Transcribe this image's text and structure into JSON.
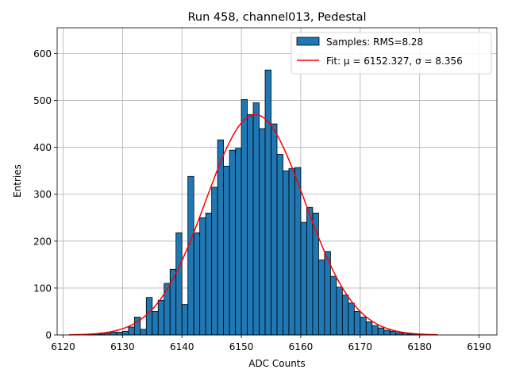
{
  "chart_data": {
    "type": "bar",
    "title": "Run 458, channel013, Pedestal",
    "xlabel": "ADC Counts",
    "ylabel": "Entries",
    "xlim": [
      6119,
      6193
    ],
    "ylim": [
      0,
      655
    ],
    "xticks": [
      6120,
      6130,
      6140,
      6150,
      6160,
      6170,
      6180,
      6190
    ],
    "yticks": [
      0,
      100,
      200,
      300,
      400,
      500,
      600
    ],
    "grid": true,
    "legend_position": "top-right",
    "colors": {
      "bar": "#1f77b4",
      "fit": "#ff0000"
    },
    "series": [
      {
        "name": "Samples: RMS=8.28",
        "kind": "histogram",
        "bin_edges": [
          6121,
          6122,
          6123,
          6124,
          6125,
          6126,
          6127,
          6128,
          6129,
          6130,
          6131,
          6132,
          6133,
          6134,
          6135,
          6136,
          6137,
          6138,
          6139,
          6140,
          6141,
          6142,
          6143,
          6144,
          6145,
          6146,
          6147,
          6148,
          6149,
          6150,
          6151,
          6152,
          6153,
          6154,
          6155,
          6156,
          6157,
          6158,
          6159,
          6160,
          6161,
          6162,
          6163,
          6164,
          6165,
          6166,
          6167,
          6168,
          6169,
          6170,
          6171,
          6172,
          6173,
          6174,
          6175,
          6176,
          6177,
          6178,
          6179,
          6180,
          6181,
          6182,
          6183
        ],
        "values": [
          0,
          0,
          0,
          1,
          2,
          2,
          4,
          6,
          6,
          8,
          17,
          38,
          12,
          80,
          50,
          74,
          110,
          140,
          218,
          65,
          338,
          218,
          250,
          260,
          315,
          416,
          360,
          394,
          398,
          502,
          470,
          495,
          440,
          565,
          450,
          385,
          350,
          355,
          357,
          240,
          272,
          260,
          160,
          178,
          125,
          102,
          85,
          68,
          50,
          38,
          28,
          20,
          15,
          10,
          8,
          5,
          4,
          2,
          2,
          1,
          1,
          1
        ]
      },
      {
        "name": "Fit: μ = 6152.327, σ = 8.356",
        "kind": "gaussian",
        "mu": 6152.327,
        "sigma": 8.356,
        "amplitude": 470,
        "x_range": [
          6121,
          6183
        ]
      }
    ]
  }
}
